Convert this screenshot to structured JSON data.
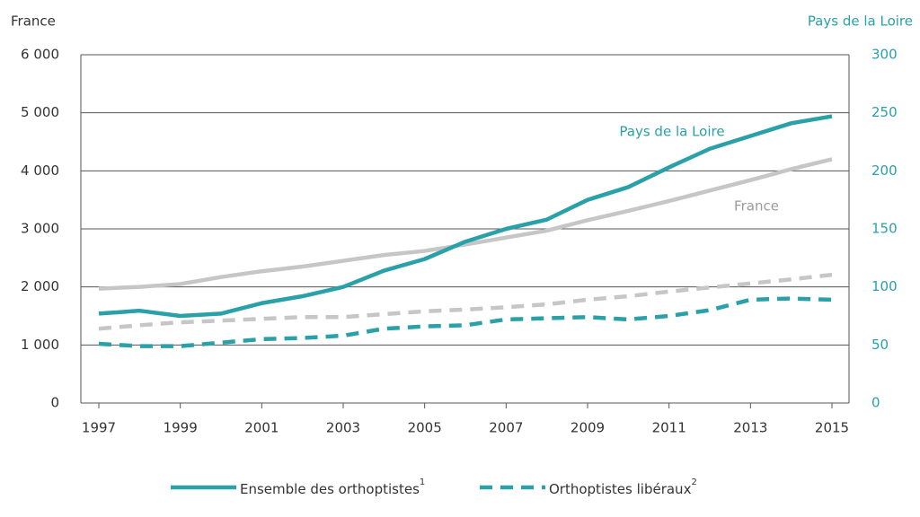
{
  "chart_data": {
    "type": "line",
    "ylabel": "France",
    "y2label": "Pays de la Loire",
    "x": [
      1997,
      1998,
      1999,
      2000,
      2001,
      2002,
      2003,
      2004,
      2005,
      2006,
      2007,
      2008,
      2009,
      2010,
      2011,
      2012,
      2013,
      2014,
      2015
    ],
    "xlim": [
      1997,
      2015
    ],
    "xticks": [
      1997,
      1999,
      2001,
      2003,
      2005,
      2007,
      2009,
      2011,
      2013,
      2015
    ],
    "ylim": [
      0,
      6000
    ],
    "yticks": [
      0,
      {
        "value": 1000,
        "label": "1 000"
      },
      {
        "value": 2000,
        "label": "2 000"
      },
      {
        "value": 3000,
        "label": "3 000"
      },
      {
        "value": 4000,
        "label": "4 000"
      },
      {
        "value": 5000,
        "label": "5 000"
      },
      {
        "value": 6000,
        "label": "6 000"
      }
    ],
    "y2lim": [
      0,
      300
    ],
    "y2ticks": [
      0,
      50,
      100,
      150,
      200,
      250,
      300
    ],
    "grid": true,
    "series": [
      {
        "color": "#c6c6c6",
        "style": "solid",
        "values": [
          1970,
          2000,
          2050,
          2170,
          2270,
          2350,
          2450,
          2550,
          2620,
          2730,
          2850,
          2970,
          3150,
          3310,
          3480,
          3660,
          3840,
          4030,
          4200
        ]
      },
      {
        "color": "#c6c6c6",
        "style": "dashed",
        "values": [
          1280,
          1340,
          1390,
          1420,
          1450,
          1480,
          1480,
          1530,
          1580,
          1610,
          1650,
          1700,
          1780,
          1840,
          1920,
          1990,
          2060,
          2130,
          2210
        ]
      },
      {
        "color": "#2aa0a8",
        "style": "solid",
        "axis": "y2",
        "values": [
          77,
          79.5,
          75,
          77,
          86,
          92,
          100,
          114,
          124,
          139,
          150,
          158,
          175,
          186,
          203,
          219,
          230,
          241,
          247
        ]
      },
      {
        "color": "#2aa0a8",
        "style": "dashed",
        "axis": "y2",
        "values": [
          51,
          49,
          49,
          52,
          55,
          56,
          58,
          64,
          66,
          67,
          72,
          73,
          74,
          72,
          75,
          80,
          89,
          90,
          89
        ]
      }
    ],
    "annotations": [
      {
        "text": "Pays de la Loire",
        "color": "#2aa0a8"
      },
      {
        "text": "France",
        "color": "#9a9a9a"
      }
    ],
    "legend": [
      {
        "label": "Ensemble des orthoptistes",
        "sup": "1",
        "style": "solid",
        "color": "#2aa0a8"
      },
      {
        "label": "Orthoptistes libéraux",
        "sup": "2",
        "style": "dashed",
        "color": "#2aa0a8"
      }
    ]
  }
}
